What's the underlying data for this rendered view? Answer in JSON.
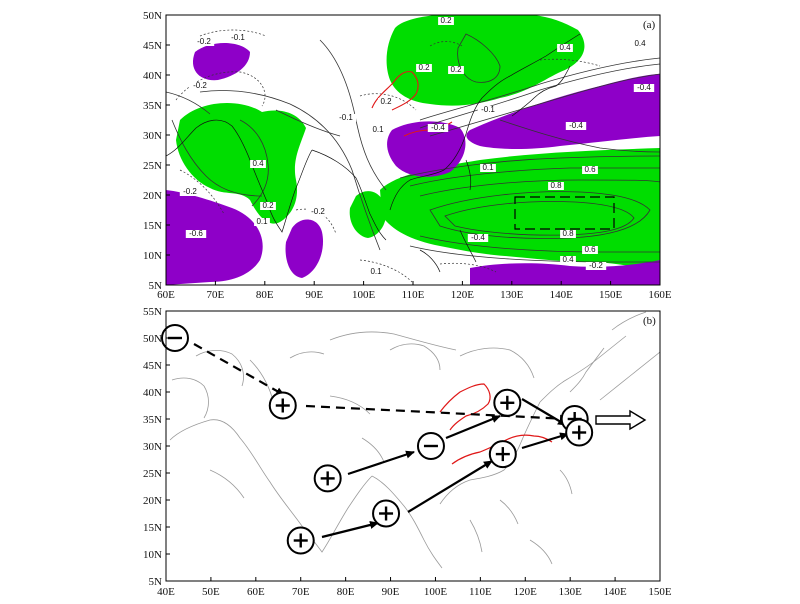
{
  "panel_a": {
    "label": "(a)",
    "x_ticks": [
      "60E",
      "70E",
      "80E",
      "90E",
      "100E",
      "110E",
      "120E",
      "130E",
      "140E",
      "150E",
      "160E"
    ],
    "y_ticks": [
      "50N",
      "45N",
      "40N",
      "35N",
      "30N",
      "25N",
      "20N",
      "15N",
      "10N",
      "5N"
    ],
    "contour_labels": [
      {
        "text": "0.2"
      },
      {
        "text": "-0.2"
      },
      {
        "text": "-0.1"
      },
      {
        "text": "-0.2"
      },
      {
        "text": "0.4"
      },
      {
        "text": "0.2"
      },
      {
        "text": "-0.4"
      },
      {
        "text": "-0.6"
      },
      {
        "text": "-0.2"
      },
      {
        "text": "0.1"
      },
      {
        "text": "0.2"
      },
      {
        "text": "0.4"
      },
      {
        "text": "-0.4"
      },
      {
        "text": "0.6"
      },
      {
        "text": "0.8"
      },
      {
        "text": "0.8"
      },
      {
        "text": "0.6"
      },
      {
        "text": "0.4"
      },
      {
        "text": "-0.4"
      },
      {
        "text": "0.2"
      },
      {
        "text": "-0.1"
      },
      {
        "text": "0.1"
      },
      {
        "text": "-0.2"
      },
      {
        "text": "0.1"
      },
      {
        "text": "-0.4"
      },
      {
        "text": "-0.1"
      },
      {
        "text": "0.2"
      },
      {
        "text": "0.4"
      },
      {
        "text": "-0.2"
      },
      {
        "text": "0.1"
      }
    ],
    "colors": {
      "positive": "#00dd00",
      "negative": "#8e00c8",
      "river": "#e01818"
    }
  },
  "panel_b": {
    "label": "(b)",
    "x_ticks": [
      "40E",
      "50E",
      "60E",
      "70E",
      "80E",
      "90E",
      "100E",
      "110E",
      "120E",
      "130E",
      "140E",
      "150E"
    ],
    "y_ticks": [
      "55N",
      "50N",
      "45N",
      "40N",
      "35N",
      "30N",
      "25N",
      "20N",
      "15N",
      "10N",
      "5N"
    ],
    "centers": [
      {
        "name": "north-atlantic-low",
        "sign": "negative",
        "lon": 42,
        "lat": 50
      },
      {
        "name": "central-asia-high",
        "sign": "positive",
        "lon": 66,
        "lat": 37.5
      },
      {
        "name": "north-china-high",
        "sign": "positive",
        "lon": 116,
        "lat": 38
      },
      {
        "name": "japan-high-north",
        "sign": "positive",
        "lon": 131,
        "lat": 35
      },
      {
        "name": "japan-high-south",
        "sign": "positive",
        "lon": 132,
        "lat": 32.5
      },
      {
        "name": "tibet-low",
        "sign": "negative",
        "lon": 99,
        "lat": 30
      },
      {
        "name": "arabian-sea-high",
        "sign": "positive",
        "lon": 76,
        "lat": 24
      },
      {
        "name": "yangtze-high",
        "sign": "positive",
        "lon": 115,
        "lat": 28.5
      },
      {
        "name": "bay-of-bengal-high",
        "sign": "positive",
        "lon": 89,
        "lat": 17.5
      },
      {
        "name": "indian-ocean-high",
        "sign": "positive",
        "lon": 70,
        "lat": 12.5
      }
    ]
  }
}
